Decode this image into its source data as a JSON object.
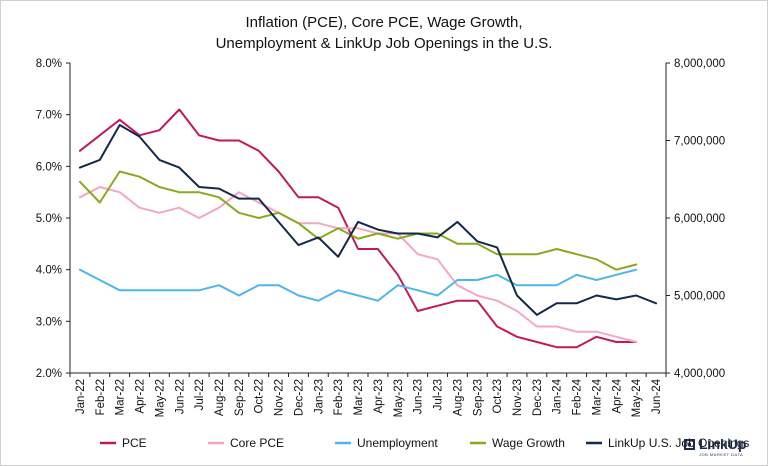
{
  "chart_data": {
    "type": "line",
    "title": "Inflation (PCE), Core PCE, Wage Growth,",
    "subtitle": "Unemployment & LinkUp Job Openings in the U.S.",
    "categories": [
      "Jan-22",
      "Feb-22",
      "Mar-22",
      "Apr-22",
      "May-22",
      "Jun-22",
      "Jul-22",
      "Aug-22",
      "Sep-22",
      "Oct-22",
      "Nov-22",
      "Dec-22",
      "Jan-23",
      "Feb-23",
      "Mar-23",
      "Apr-23",
      "May-23",
      "Jun-23",
      "Jul-23",
      "Aug-23",
      "Sep-23",
      "Oct-23",
      "Nov-23",
      "Dec-23",
      "Jan-24",
      "Feb-24",
      "Mar-24",
      "Apr-24",
      "May-24",
      "Jun-24"
    ],
    "y_left": {
      "min": 2.0,
      "max": 8.0,
      "ticks": [
        "2.0%",
        "3.0%",
        "4.0%",
        "5.0%",
        "6.0%",
        "7.0%",
        "8.0%"
      ]
    },
    "y_right": {
      "min": 4000000,
      "max": 8000000,
      "ticks": [
        "4,000,000",
        "5,000,000",
        "6,000,000",
        "7,000,000",
        "8,000,000"
      ]
    },
    "grid": false,
    "legend_position": "bottom",
    "series": [
      {
        "name": "PCE",
        "axis": "left",
        "color": "#c2185b",
        "values": [
          6.3,
          6.6,
          6.9,
          6.6,
          6.7,
          7.1,
          6.6,
          6.5,
          6.5,
          6.3,
          5.9,
          5.4,
          5.4,
          5.2,
          4.4,
          4.4,
          3.9,
          3.2,
          3.3,
          3.4,
          3.4,
          2.9,
          2.7,
          2.6,
          2.5,
          2.5,
          2.7,
          2.6,
          2.6,
          null
        ]
      },
      {
        "name": "Core PCE",
        "axis": "left",
        "color": "#f4a6c4",
        "values": [
          5.4,
          5.6,
          5.5,
          5.2,
          5.1,
          5.2,
          5.0,
          5.2,
          5.5,
          5.3,
          5.1,
          4.9,
          4.9,
          4.8,
          4.8,
          4.7,
          4.7,
          4.3,
          4.2,
          3.7,
          3.5,
          3.4,
          3.2,
          2.9,
          2.9,
          2.8,
          2.8,
          2.7,
          2.6,
          null
        ]
      },
      {
        "name": "Unemployment",
        "axis": "left",
        "color": "#4db7ea",
        "values": [
          4.0,
          3.8,
          3.6,
          3.6,
          3.6,
          3.6,
          3.6,
          3.7,
          3.5,
          3.7,
          3.7,
          3.5,
          3.4,
          3.6,
          3.5,
          3.4,
          3.7,
          3.6,
          3.5,
          3.8,
          3.8,
          3.9,
          3.7,
          3.7,
          3.7,
          3.9,
          3.8,
          3.9,
          4.0,
          null
        ]
      },
      {
        "name": "Wage Growth",
        "axis": "left",
        "color": "#8aa81e",
        "values": [
          5.7,
          5.3,
          5.9,
          5.8,
          5.6,
          5.5,
          5.5,
          5.4,
          5.1,
          5.0,
          5.1,
          4.9,
          4.6,
          4.8,
          4.6,
          4.7,
          4.6,
          4.7,
          4.7,
          4.5,
          4.5,
          4.3,
          4.3,
          4.3,
          4.4,
          4.3,
          4.2,
          4.0,
          4.1,
          null
        ]
      },
      {
        "name": "LinkUp U.S. Job Openings",
        "axis": "right",
        "color": "#13294b",
        "values": [
          6650000,
          6750000,
          7200000,
          7050000,
          6750000,
          6650000,
          6400000,
          6380000,
          6250000,
          6250000,
          5950000,
          5650000,
          5750000,
          5500000,
          5950000,
          5850000,
          5800000,
          5800000,
          5750000,
          5950000,
          5700000,
          5620000,
          5000000,
          4750000,
          4900000,
          4900000,
          5000000,
          4950000,
          5000000,
          4900000
        ]
      }
    ]
  },
  "logo": {
    "text": "LinkUp",
    "sub": "JOB MARKET DATA"
  }
}
